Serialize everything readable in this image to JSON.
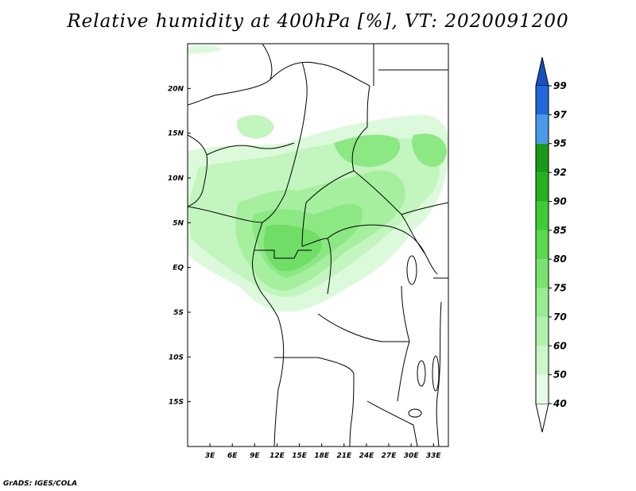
{
  "title": "Relative humidity at 400hPa [%], VT: 2020091200",
  "credit": "GrADS: IGES/COLA",
  "map": {
    "lon_range": [
      0,
      35
    ],
    "lat_range": [
      -20,
      25
    ],
    "lat_ticks": [
      {
        "value": 20,
        "label": "20N"
      },
      {
        "value": 15,
        "label": "15N"
      },
      {
        "value": 10,
        "label": "10N"
      },
      {
        "value": 5,
        "label": "5N"
      },
      {
        "value": 0,
        "label": "EQ"
      },
      {
        "value": -5,
        "label": "5S"
      },
      {
        "value": -10,
        "label": "10S"
      },
      {
        "value": -15,
        "label": "15S"
      }
    ],
    "lon_ticks": [
      {
        "value": 3,
        "label": "3E"
      },
      {
        "value": 6,
        "label": "6E"
      },
      {
        "value": 9,
        "label": "9E"
      },
      {
        "value": 12,
        "label": "12E"
      },
      {
        "value": 15,
        "label": "15E"
      },
      {
        "value": 18,
        "label": "18E"
      },
      {
        "value": 21,
        "label": "21E"
      },
      {
        "value": 24,
        "label": "24E"
      },
      {
        "value": 27,
        "label": "27E"
      },
      {
        "value": 30,
        "label": "30E"
      },
      {
        "value": 33,
        "label": "33E"
      }
    ]
  },
  "colorbar": {
    "levels": [
      "40",
      "50",
      "60",
      "70",
      "75",
      "80",
      "85",
      "90",
      "92",
      "95",
      "97",
      "99"
    ],
    "colors": [
      "#ffffff",
      "#e6fce6",
      "#cbf7c8",
      "#b0f2aa",
      "#96ee8f",
      "#78e370",
      "#5ad84f",
      "#3fcb36",
      "#26b21f",
      "#1a9a1a",
      "#4b9ae9",
      "#2168d9",
      "#1a4fc2"
    ]
  }
}
